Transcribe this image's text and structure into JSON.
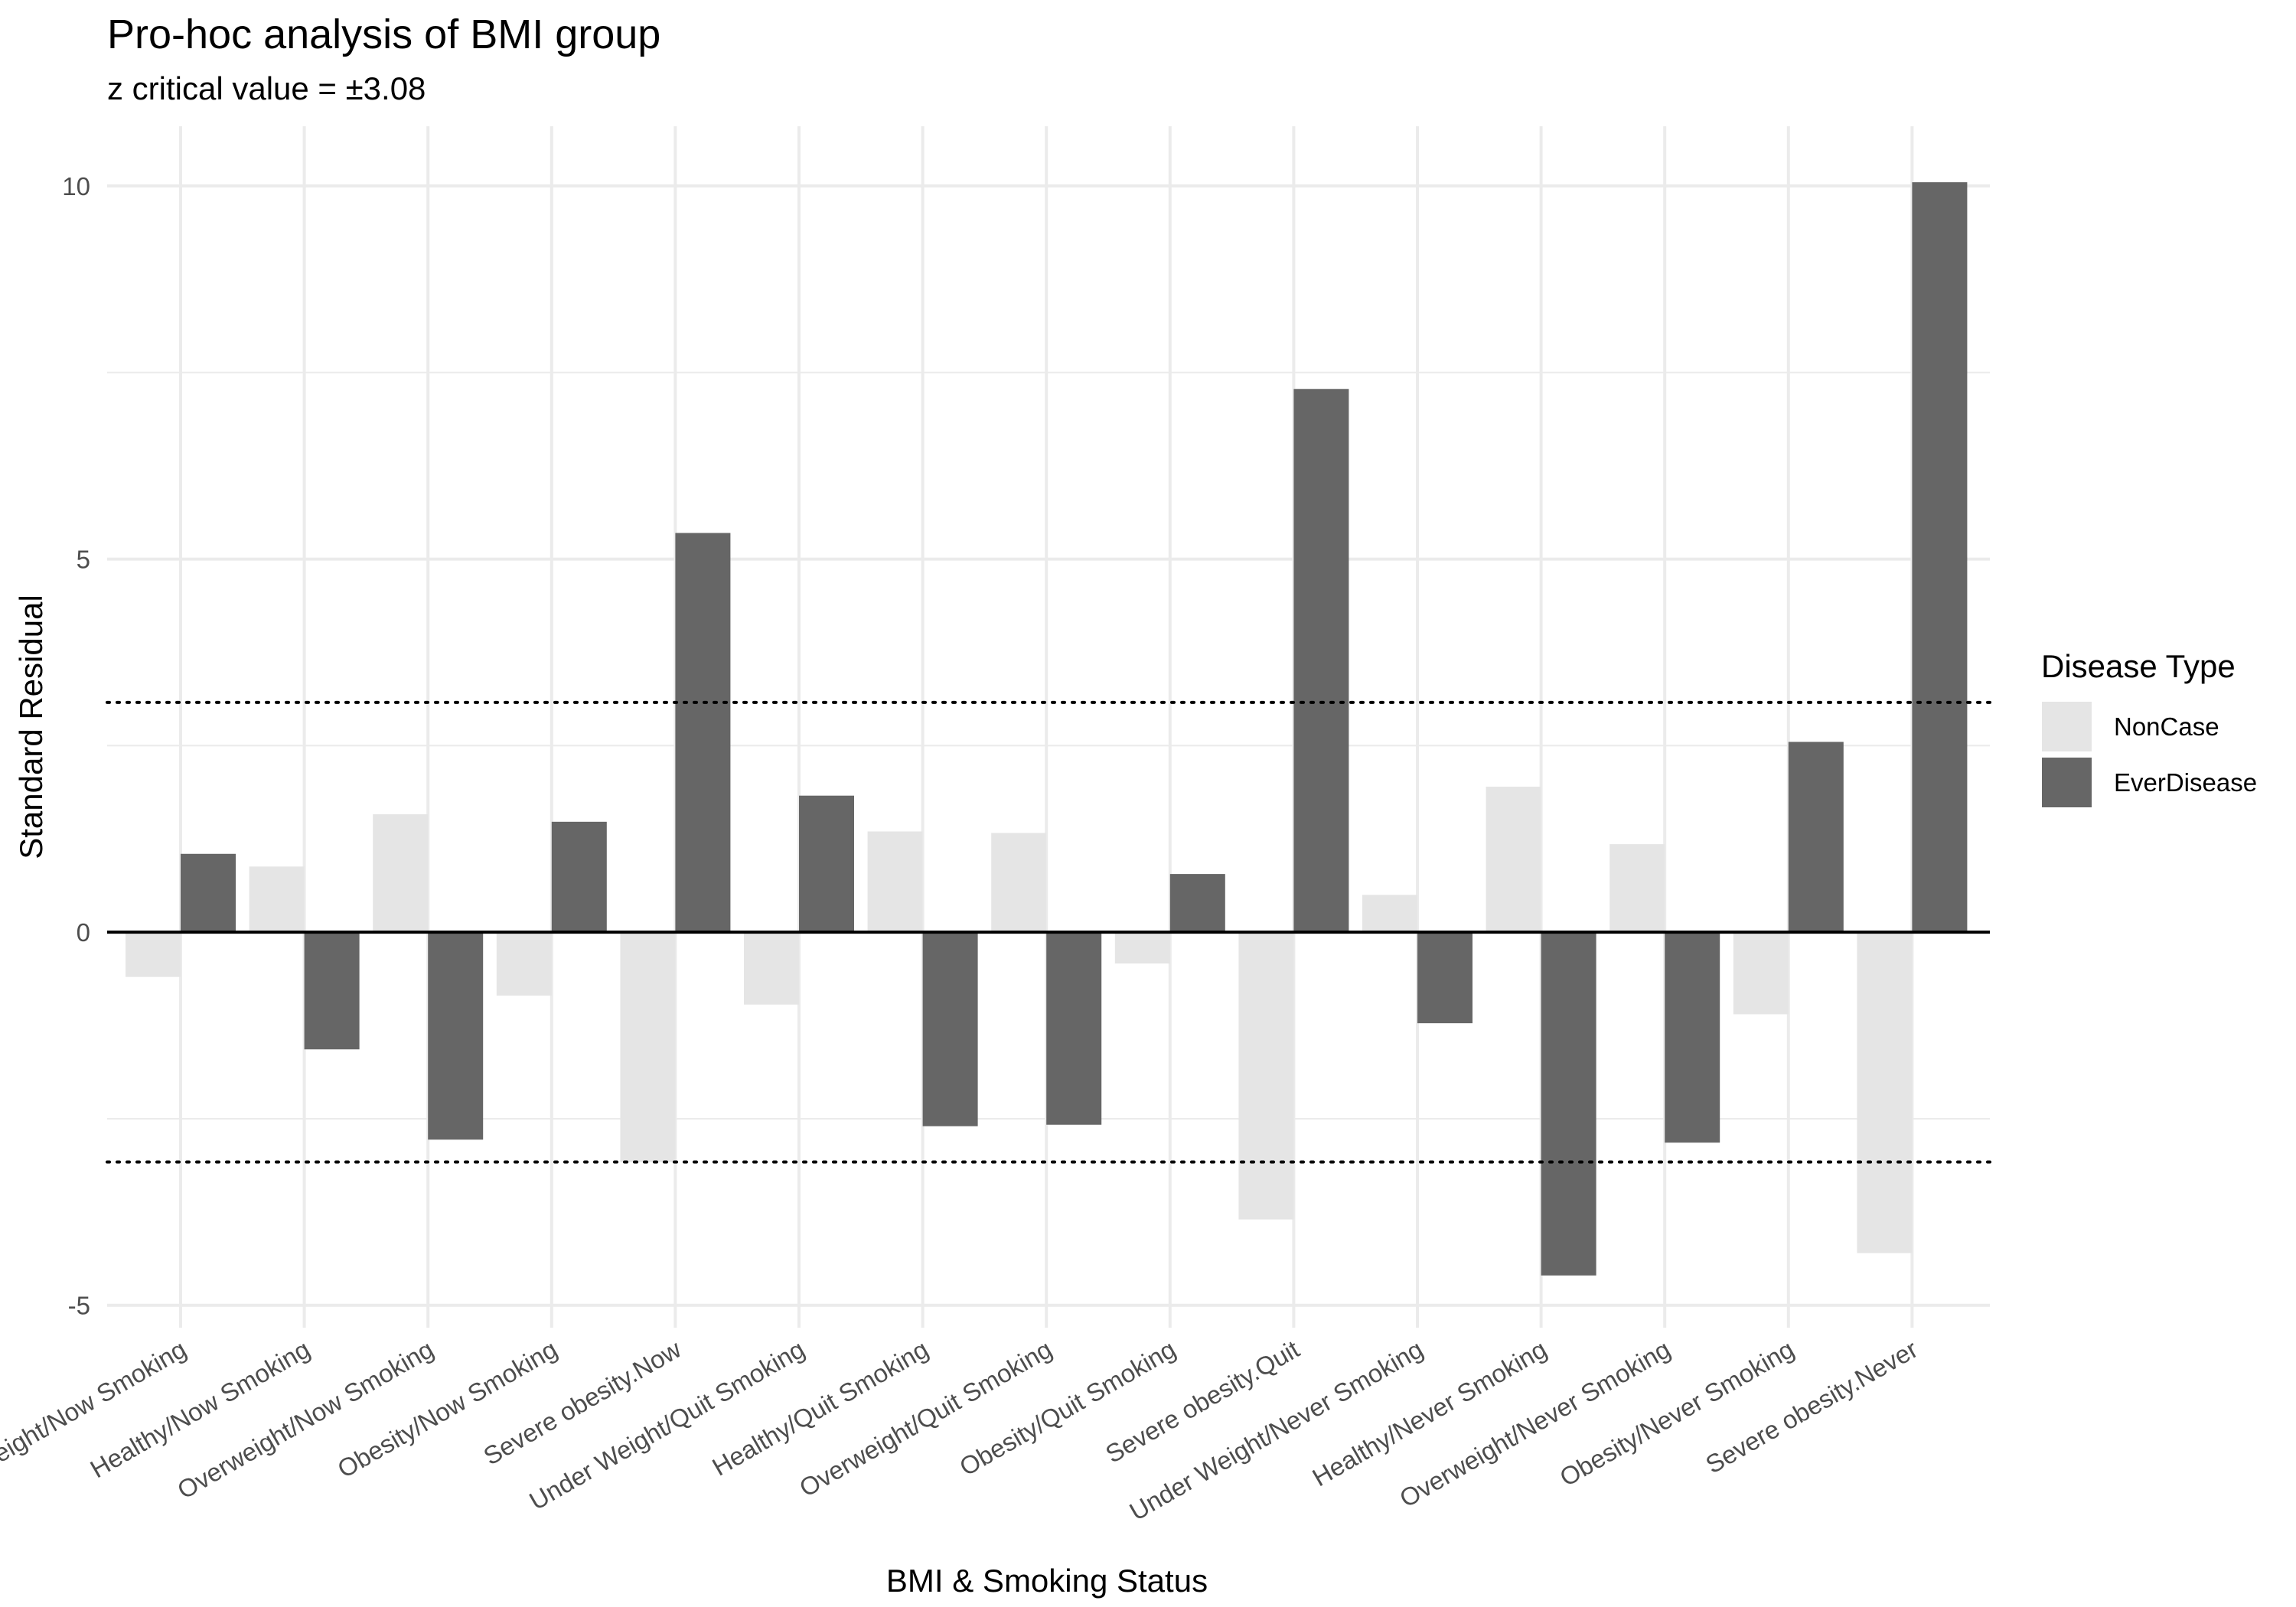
{
  "chart_data": {
    "type": "bar",
    "title": "Pro-hoc analysis of BMI group",
    "subtitle": "z critical value = ±3.08",
    "xlabel": "BMI & Smoking Status",
    "ylabel": "Standard Residual",
    "ylim": [
      -5.3,
      10.8
    ],
    "yticks": [
      -5,
      0,
      5,
      10
    ],
    "critical_value": 3.08,
    "grid": true,
    "legend": {
      "title": "Disease Type",
      "position": "right"
    },
    "categories": [
      "Under Weight/Now Smoking",
      "Healthy/Now Smoking",
      "Overweight/Now Smoking",
      "Obesity/Now Smoking",
      "Severe obesity.Now",
      "Under Weight/Quit Smoking",
      "Healthy/Quit Smoking",
      "Overweight/Quit Smoking",
      "Obesity/Quit Smoking",
      "Severe obesity.Quit",
      "Under Weight/Never Smoking",
      "Healthy/Never Smoking",
      "Overweight/Never Smoking",
      "Obesity/Never Smoking",
      "Severe obesity.Never"
    ],
    "series": [
      {
        "name": "NonCase",
        "color": "#e5e5e5",
        "values": [
          -0.6,
          0.88,
          1.58,
          -0.85,
          -3.08,
          -0.97,
          1.35,
          1.33,
          -0.42,
          -3.85,
          0.5,
          1.95,
          1.18,
          -1.1,
          -4.3
        ]
      },
      {
        "name": "EverDisease",
        "color": "#666666",
        "values": [
          1.05,
          -1.57,
          -2.78,
          1.48,
          5.35,
          1.83,
          -2.6,
          -2.58,
          0.78,
          7.28,
          -1.22,
          -4.6,
          -2.82,
          2.55,
          10.05
        ]
      }
    ]
  }
}
